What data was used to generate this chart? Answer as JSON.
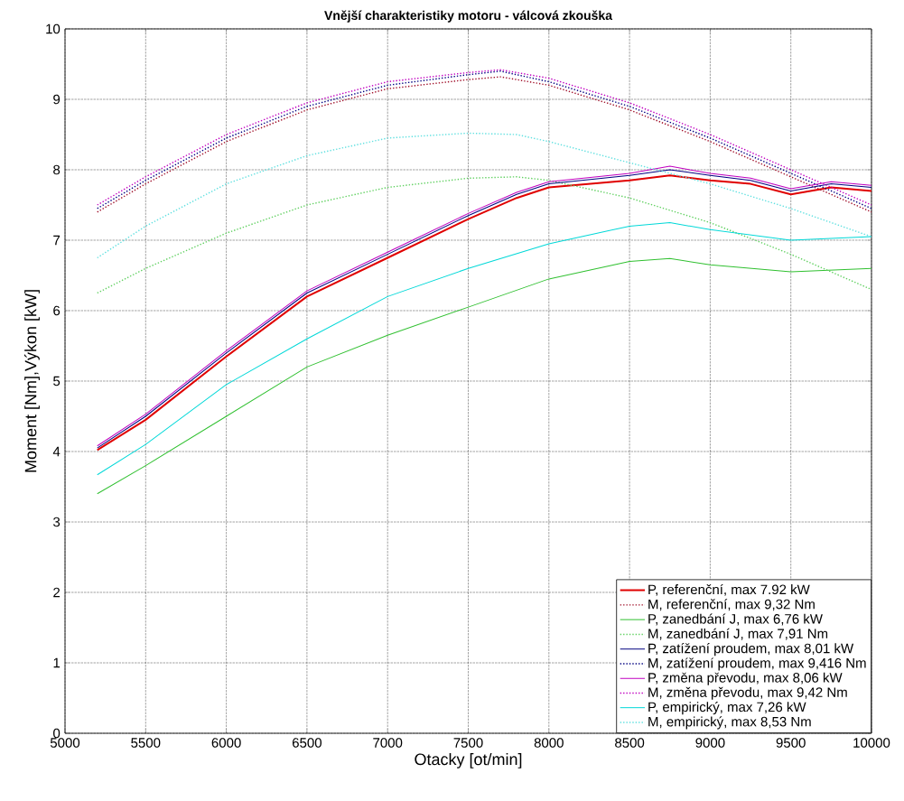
{
  "chart_data": {
    "type": "line",
    "title": "Vnější charakteristiky motoru - válcová zkouška",
    "xlabel": "Otacky [ot/min]",
    "ylabel": "Moment [Nm],Výkon [kW]",
    "xlim": [
      5000,
      10000
    ],
    "xticks": [
      5000,
      5500,
      6000,
      6500,
      7000,
      7500,
      8000,
      8500,
      9000,
      9500,
      10000
    ],
    "ylim": [
      0,
      10
    ],
    "yticks": [
      0,
      1,
      2,
      3,
      4,
      5,
      6,
      7,
      8,
      9,
      10
    ],
    "grid": true,
    "legend": "bottom right",
    "marker": "none",
    "series": [
      {
        "name": "P, referenční, max 7.92 kW",
        "color": "#e00000",
        "line_style": "solid",
        "x": [
          5200,
          5500,
          6000,
          6500,
          7000,
          7500,
          7800,
          8000,
          8500,
          8750,
          9000,
          9250,
          9500,
          9750,
          10000
        ],
        "values": [
          4.02,
          4.45,
          5.35,
          6.2,
          6.75,
          7.3,
          7.6,
          7.75,
          7.85,
          7.92,
          7.85,
          7.8,
          7.65,
          7.75,
          7.7
        ]
      },
      {
        "name": "M, referenční, max 9,32 Nm",
        "color": "#a0102a",
        "line_style": "dotted",
        "x": [
          5200,
          5500,
          6000,
          6500,
          7000,
          7500,
          7700,
          8000,
          8500,
          9000,
          9500,
          10000
        ],
        "values": [
          7.4,
          7.8,
          8.4,
          8.85,
          9.15,
          9.28,
          9.32,
          9.2,
          8.85,
          8.4,
          7.9,
          7.4
        ]
      },
      {
        "name": "P, zanedbání J, max 6,76 kW",
        "color": "#30c030",
        "line_style": "solid",
        "x": [
          5200,
          5500,
          6000,
          6500,
          7000,
          7500,
          8000,
          8500,
          8750,
          9000,
          9500,
          10000
        ],
        "values": [
          3.4,
          3.8,
          4.5,
          5.2,
          5.65,
          6.05,
          6.45,
          6.7,
          6.74,
          6.65,
          6.55,
          6.6
        ]
      },
      {
        "name": "M, zanedbání J, max 7,91 Nm",
        "color": "#60d060",
        "line_style": "dotted",
        "x": [
          5200,
          5500,
          6000,
          6500,
          7000,
          7500,
          7800,
          8000,
          8500,
          9000,
          9500,
          10000
        ],
        "values": [
          6.25,
          6.6,
          7.1,
          7.5,
          7.75,
          7.88,
          7.9,
          7.85,
          7.6,
          7.25,
          6.8,
          6.3
        ]
      },
      {
        "name": "P, zatížení proudem, max 8,01 kW",
        "color": "#000080",
        "line_style": "solid",
        "x": [
          5200,
          5500,
          6000,
          6500,
          7000,
          7500,
          7800,
          8000,
          8500,
          8750,
          9000,
          9250,
          9500,
          9750,
          10000
        ],
        "values": [
          4.05,
          4.5,
          5.4,
          6.25,
          6.8,
          7.35,
          7.65,
          7.8,
          7.92,
          8.0,
          7.92,
          7.85,
          7.7,
          7.8,
          7.75
        ]
      },
      {
        "name": "M, zatížení proudem, max 9,416 Nm",
        "color": "#000080",
        "line_style": "dotted",
        "x": [
          5200,
          5500,
          6000,
          6500,
          7000,
          7500,
          7700,
          8000,
          8500,
          9000,
          9500,
          10000
        ],
        "values": [
          7.45,
          7.85,
          8.45,
          8.9,
          9.2,
          9.35,
          9.4,
          9.25,
          8.9,
          8.45,
          7.95,
          7.45
        ]
      },
      {
        "name": "P, změna převodu, max 8,06 kW",
        "color": "#c000c0",
        "line_style": "solid",
        "x": [
          5200,
          5500,
          6000,
          6500,
          7000,
          7500,
          7800,
          8000,
          8500,
          8750,
          9000,
          9250,
          9500,
          9750,
          10000
        ],
        "values": [
          4.08,
          4.53,
          5.43,
          6.28,
          6.83,
          7.38,
          7.68,
          7.83,
          7.95,
          8.05,
          7.95,
          7.88,
          7.73,
          7.83,
          7.78
        ]
      },
      {
        "name": "M, změna převodu, max 9,42 Nm",
        "color": "#c000c0",
        "line_style": "dotted",
        "x": [
          5200,
          5500,
          6000,
          6500,
          7000,
          7500,
          7700,
          8000,
          8500,
          9000,
          9500,
          10000
        ],
        "values": [
          7.5,
          7.9,
          8.5,
          8.95,
          9.25,
          9.38,
          9.42,
          9.3,
          8.95,
          8.5,
          8.0,
          7.5
        ]
      },
      {
        "name": "P, empirický, max 7,26 kW",
        "color": "#00d8d8",
        "line_style": "solid",
        "x": [
          5200,
          5500,
          6000,
          6500,
          7000,
          7500,
          8000,
          8500,
          8750,
          9000,
          9500,
          10000
        ],
        "values": [
          3.67,
          4.1,
          4.95,
          5.6,
          6.2,
          6.6,
          6.95,
          7.2,
          7.25,
          7.15,
          7.0,
          7.05
        ]
      },
      {
        "name": "M, empirický, max 8,53 Nm",
        "color": "#60e0e0",
        "line_style": "dotted",
        "x": [
          5200,
          5500,
          6000,
          6500,
          7000,
          7500,
          7800,
          8000,
          8500,
          9000,
          9500,
          10000
        ],
        "values": [
          6.75,
          7.2,
          7.8,
          8.2,
          8.45,
          8.52,
          8.5,
          8.4,
          8.1,
          7.8,
          7.45,
          7.05
        ]
      }
    ]
  }
}
